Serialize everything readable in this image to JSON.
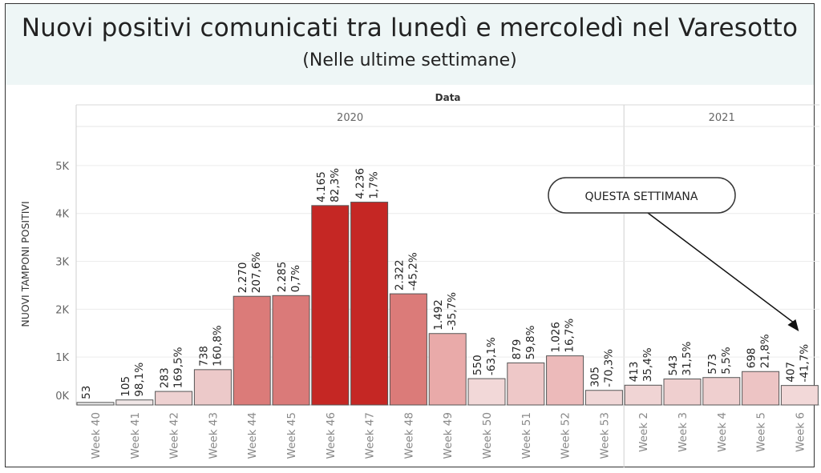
{
  "header": {
    "title": "Nuovi positivi comunicati tra lunedì e mercoledì nel Varesotto",
    "subtitle": "(Nelle ultime settimane)"
  },
  "chart_data": {
    "type": "bar",
    "column_header": "Data",
    "years": [
      {
        "label": "2020",
        "count": 14
      },
      {
        "label": "2021",
        "count": 5
      }
    ],
    "ylabel": "NUOVI TAMPONI POSITIVI",
    "yticks": [
      "0K",
      "1K",
      "2K",
      "3K",
      "4K",
      "5K"
    ],
    "ylim": [
      0,
      5700
    ],
    "categories": [
      "Week 40",
      "Week 41",
      "Week 42",
      "Week 43",
      "Week 44",
      "Week 45",
      "Week 46",
      "Week 47",
      "Week 48",
      "Week 49",
      "Week 50",
      "Week 51",
      "Week 52",
      "Week 53",
      "Week 2",
      "Week 3",
      "Week 4",
      "Week 5",
      "Week 6"
    ],
    "values": [
      53,
      105,
      283,
      738,
      2270,
      2285,
      4165,
      4236,
      2322,
      1492,
      550,
      879,
      1026,
      305,
      413,
      543,
      573,
      698,
      407
    ],
    "value_labels": [
      "53",
      "105",
      "283",
      "738",
      "2.270",
      "2.285",
      "4.165",
      "4.236",
      "2.322",
      "1.492",
      "550",
      "879",
      "1.026",
      "305",
      "413",
      "543",
      "573",
      "698",
      "407"
    ],
    "pct_labels": [
      "",
      "98,1%",
      "169,5%",
      "160,8%",
      "207,6%",
      "0,7%",
      "82,3%",
      "1,7%",
      "-45,2%",
      "-35,7%",
      "-63,1%",
      "59,8%",
      "16,7%",
      "-70,3%",
      "35,4%",
      "31,5%",
      "5,5%",
      "21,8%",
      "-41,7%"
    ],
    "bar_colors": [
      "#ececec",
      "#f0e6e6",
      "#eed1d1",
      "#ecc9c9",
      "#db7b79",
      "#da7a79",
      "#c52724",
      "#c52724",
      "#db7b79",
      "#e9aaa9",
      "#f2d8d8",
      "#eec8c8",
      "#ecbaba",
      "#f0d6d6",
      "#f0d4d4",
      "#efcfcf",
      "#efcfcf",
      "#edc4c4",
      "#f2d8d8"
    ],
    "annotation": "QUESTA SETTIMANA",
    "grid": true,
    "legend": "none"
  }
}
